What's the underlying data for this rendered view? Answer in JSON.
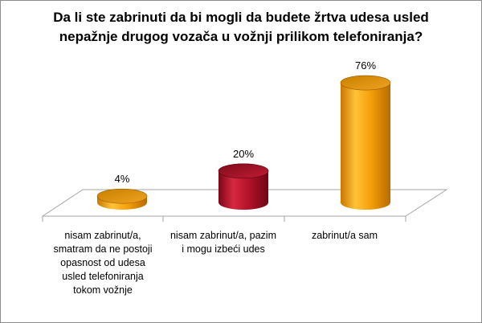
{
  "chart_data": {
    "type": "bar",
    "title": [
      "Da li ste zabrinuti da bi mogli da budete žrtva udesa usled",
      "nepažnje drugog vozača u vožnji prilikom telefoniranja?"
    ],
    "categories": [
      "nisam zabrinut/a, smatram da ne postoji opasnost od udesa usled telefoniranja tokom vožnje",
      "nisam zabrinut/a, pazim i mogu izbeći udes",
      "zabrinut/a sam"
    ],
    "values": [
      4,
      20,
      76
    ],
    "data_labels": [
      "4%",
      "20%",
      "76%"
    ],
    "colors": [
      "#f5a00a",
      "#b3122a",
      "#f5a00a"
    ],
    "ylim": [
      0,
      100
    ],
    "grid": false,
    "legend": "none"
  }
}
